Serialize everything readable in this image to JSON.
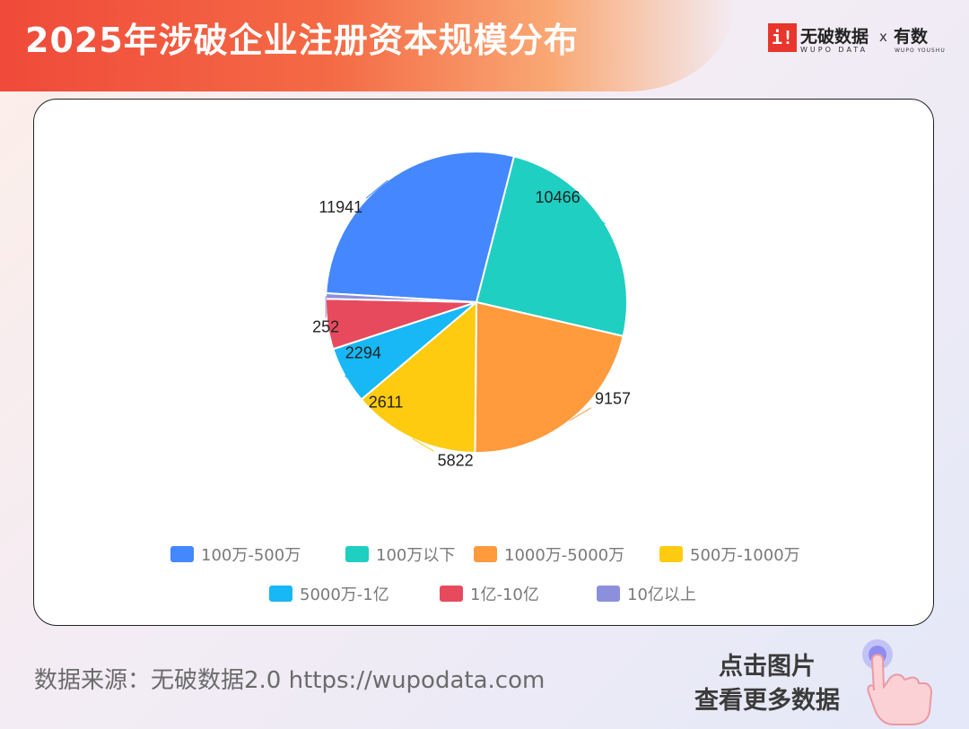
{
  "header": {
    "title": "2025年涉破企业注册资本规模分布",
    "brand_mark": "i!",
    "brand_name": "无破数据",
    "brand_sub": "WUPO DATA",
    "brand_x": "x",
    "partner_name": "有数",
    "partner_sub": "WUPO YOUSHU"
  },
  "chart_data": {
    "type": "pie",
    "title": "",
    "categories": [
      "100万-500万",
      "100万以下",
      "1000万-5000万",
      "500万-1000万",
      "5000万-1亿",
      "1亿-10亿",
      "10亿以上"
    ],
    "values": [
      11941,
      10466,
      9157,
      5822,
      2611,
      2294,
      252
    ],
    "colors": [
      "#4487fe",
      "#1fcfc1",
      "#ff9a3d",
      "#ffcb10",
      "#17b8f5",
      "#e74a5d",
      "#8c8fdb"
    ],
    "legend_position": "bottom"
  },
  "footer": {
    "source": "数据来源：无破数据2.0 https://wupodata.com",
    "cta_line1": "点击图片",
    "cta_line2": "查看更多数据"
  }
}
